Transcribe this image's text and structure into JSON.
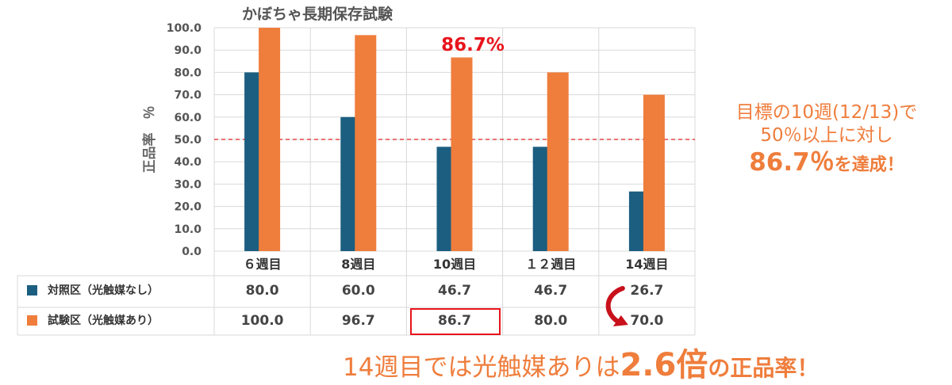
{
  "chart_data": {
    "type": "bar",
    "title": "かぼちゃ長期保存試験",
    "ylabel": "正品率　％",
    "ylim": [
      0,
      100
    ],
    "yticks": [
      "100.0",
      "90.0",
      "80.0",
      "70.0",
      "60.0",
      "50.0",
      "40.0",
      "30.0",
      "20.0",
      "10.0",
      "0.0"
    ],
    "categories": [
      "６週目",
      "8週目",
      "10週目",
      "１２週目",
      "14週目"
    ],
    "series": [
      {
        "name": "対照区（光触媒なし）",
        "values": [
          80.0,
          60.0,
          46.7,
          46.7,
          26.7
        ],
        "labels": [
          "80.0",
          "60.0",
          "46.7",
          "46.7",
          "26.7"
        ],
        "color": "#1b5e80"
      },
      {
        "name": "試験区（光触媒あり）",
        "values": [
          100.0,
          96.7,
          86.7,
          80.0,
          70.0
        ],
        "labels": [
          "100.0",
          "96.7",
          "86.7",
          "80.0",
          "70.0"
        ],
        "color": "#ef7d3c"
      }
    ],
    "reference_line": {
      "value": 50,
      "color": "#e02020",
      "style": "dashed"
    },
    "grid": true,
    "legend": "table-below",
    "highlight_label": "86.7%",
    "highlight_color": "#e8141c"
  },
  "annotations": {
    "side": {
      "line1": "目標の10週(12/13)で",
      "line2": "50％以上に対し",
      "big": "86.7％",
      "small": "を達成！"
    },
    "bottom": {
      "prefix": "14週目では光触媒ありは",
      "big": "2.6倍",
      "suffix": "の正品率！"
    },
    "color": "#ef7d3c"
  }
}
